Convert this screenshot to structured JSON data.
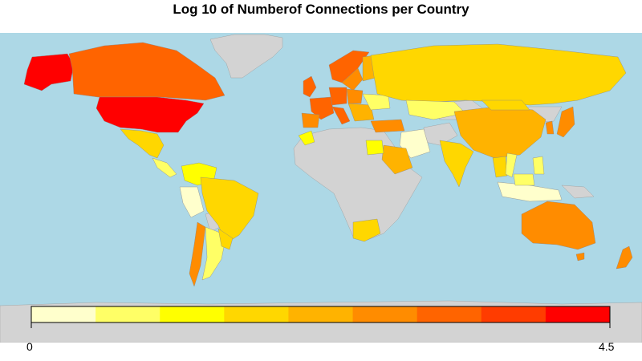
{
  "title": "Log 10 of Numberof Connections per Country",
  "legend": {
    "min_label": "0",
    "max_label": "4.5",
    "colors": [
      "#FFFFCC",
      "#FFFF66",
      "#FFFF00",
      "#FFD700",
      "#FFB300",
      "#FF8C00",
      "#FF6400",
      "#FF3C00",
      "#FF0000"
    ]
  },
  "colors": {
    "ocean": "#ADD8E6",
    "no_data_land": "#D3D3D3",
    "border": "#999999"
  },
  "map_data": {
    "scale": "log10 of number of connections",
    "range": [
      0,
      4.5
    ],
    "countries": [
      {
        "name": "United States",
        "value": 4.5
      },
      {
        "name": "Canada",
        "value": 3.8
      },
      {
        "name": "Alaska (US)",
        "value": 4.5
      },
      {
        "name": "Mexico",
        "value": 2.5
      },
      {
        "name": "Brazil",
        "value": 2.4
      },
      {
        "name": "Argentina",
        "value": 2.0
      },
      {
        "name": "Chile",
        "value": 3.5
      },
      {
        "name": "Colombia",
        "value": 1.2
      },
      {
        "name": "Venezuela",
        "value": 1.2
      },
      {
        "name": "Peru",
        "value": 0.8
      },
      {
        "name": "United Kingdom",
        "value": 3.9
      },
      {
        "name": "France",
        "value": 3.8
      },
      {
        "name": "Germany",
        "value": 3.9
      },
      {
        "name": "Spain",
        "value": 3.3
      },
      {
        "name": "Italy",
        "value": 3.7
      },
      {
        "name": "Sweden",
        "value": 3.7
      },
      {
        "name": "Norway",
        "value": 3.4
      },
      {
        "name": "Finland",
        "value": 3.0
      },
      {
        "name": "Poland",
        "value": 3.3
      },
      {
        "name": "Ukraine",
        "value": 2.5
      },
      {
        "name": "Turkey",
        "value": 3.5
      },
      {
        "name": "Russia",
        "value": 2.2
      },
      {
        "name": "Kazakhstan",
        "value": 0.6
      },
      {
        "name": "China",
        "value": 2.8
      },
      {
        "name": "Japan",
        "value": 3.2
      },
      {
        "name": "South Korea",
        "value": 3.4
      },
      {
        "name": "Mongolia",
        "value": 2.5
      },
      {
        "name": "India",
        "value": 1.9
      },
      {
        "name": "Iran",
        "value": 0.1
      },
      {
        "name": "Saudi Arabia",
        "value": 2.9
      },
      {
        "name": "Egypt",
        "value": 1.4
      },
      {
        "name": "Morocco",
        "value": 1.3
      },
      {
        "name": "Algeria",
        "value": 0.2
      },
      {
        "name": "South Africa",
        "value": 2.4
      },
      {
        "name": "Thailand",
        "value": 1.9
      },
      {
        "name": "Indonesia",
        "value": 0.6
      },
      {
        "name": "Philippines",
        "value": 1.0
      },
      {
        "name": "Australia",
        "value": 3.6
      },
      {
        "name": "New Zealand",
        "value": 3.6
      }
    ]
  }
}
